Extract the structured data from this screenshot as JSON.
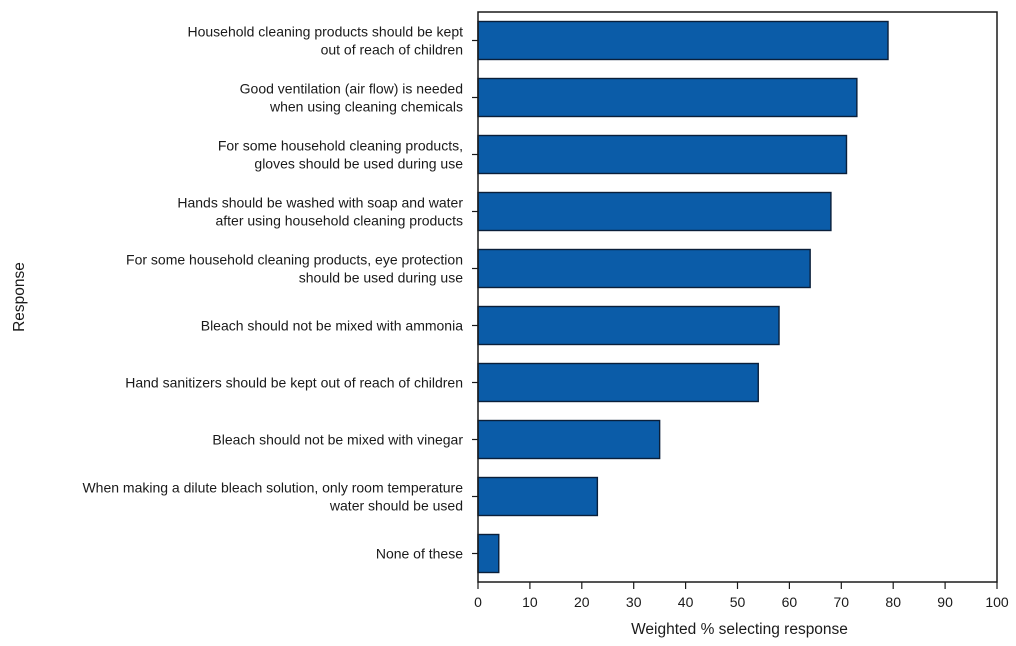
{
  "chart_data": {
    "type": "bar",
    "orientation": "horizontal",
    "xlabel": "Weighted % selecting response",
    "ylabel": "Response",
    "xlim": [
      0,
      100
    ],
    "xticks": [
      0,
      10,
      20,
      30,
      40,
      50,
      60,
      70,
      80,
      90,
      100
    ],
    "grid": false,
    "bar_color": "#0b5ca8",
    "bar_edge_color": "#0a1f3a",
    "categories": [
      [
        "Household cleaning products should be kept",
        "out of reach of children"
      ],
      [
        "Good ventilation (air flow) is needed",
        "when using cleaning chemicals"
      ],
      [
        "For some household cleaning products,",
        "gloves should be used during use"
      ],
      [
        "Hands should be washed with soap and water",
        "after using household cleaning products"
      ],
      [
        "For some household cleaning products, eye protection",
        "should be used during use"
      ],
      [
        "Bleach should not be mixed with ammonia"
      ],
      [
        "Hand sanitizers should be kept out of reach of children"
      ],
      [
        "Bleach should not be mixed with vinegar"
      ],
      [
        "When making a dilute bleach solution, only room temperature",
        "water should be used"
      ],
      [
        "None of these"
      ]
    ],
    "values": [
      79,
      73,
      71,
      68,
      64,
      58,
      54,
      35,
      23,
      4
    ]
  }
}
